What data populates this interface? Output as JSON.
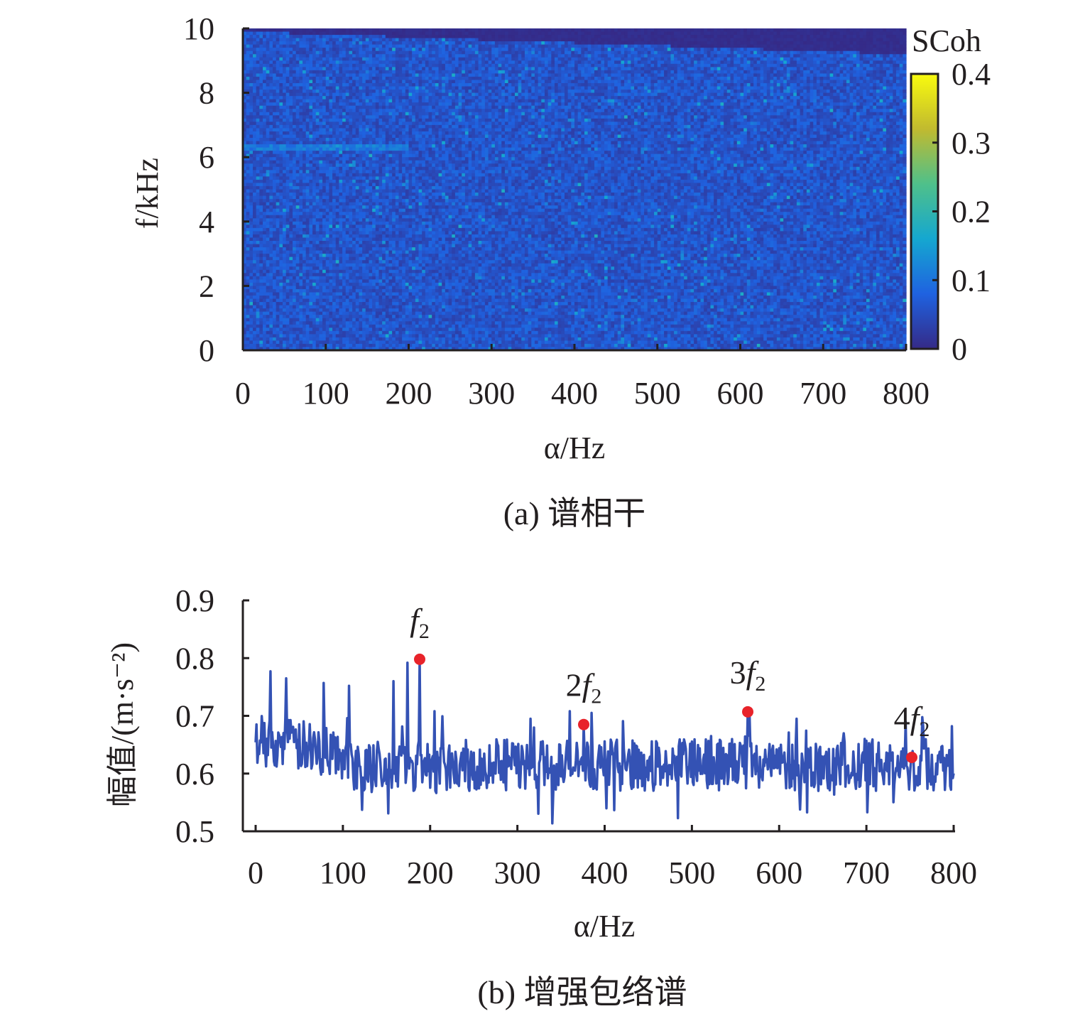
{
  "colors": {
    "line": "#3452b4",
    "peak_marker": "#e8232a",
    "axis": "#231f20",
    "colormap": [
      "#352a87",
      "#1f62e0",
      "#15a7d0",
      "#4fc08a",
      "#c1ba2f",
      "#f9fb0e"
    ]
  },
  "chart_data": [
    {
      "type": "heatmap",
      "caption": "(a) 谱相干",
      "xlabel": "α/Hz",
      "ylabel": "f/kHz",
      "xlim": [
        0,
        800
      ],
      "ylim": [
        0,
        10
      ],
      "xticks": [
        "0",
        "100",
        "200",
        "300",
        "400",
        "500",
        "600",
        "700",
        "800"
      ],
      "yticks": [
        "0",
        "2",
        "4",
        "6",
        "8",
        "10"
      ],
      "colorbar": {
        "label": "SCoh",
        "range": [
          0,
          0.4
        ],
        "ticks": [
          "0",
          "0.1",
          "0.2",
          "0.3",
          "0.4"
        ]
      },
      "background_level": 0.06,
      "noise_max": 0.15,
      "top_band": {
        "f_from_kHz": 9.2,
        "value": 0.0
      },
      "highlight_lines": [
        {
          "f_kHz": 6.3,
          "alpha_from": 0,
          "alpha_to": 200,
          "value": 0.12
        }
      ]
    },
    {
      "type": "line",
      "caption": "(b) 增强包络谱",
      "xlabel": "α/Hz",
      "ylabel": "幅值/(m·s⁻²)",
      "xlim": [
        0,
        800
      ],
      "ylim": [
        0.5,
        0.9
      ],
      "xticks": [
        "0",
        "100",
        "200",
        "300",
        "400",
        "500",
        "600",
        "700",
        "800"
      ],
      "yticks": [
        "0.5",
        "0.6",
        "0.7",
        "0.8",
        "0.9"
      ],
      "baseline": 0.615,
      "noise_amplitude": 0.045,
      "start_region": {
        "alpha_to": 110,
        "level": 0.66
      },
      "prominent_spikes": [
        {
          "x": 17,
          "y": 0.777
        },
        {
          "x": 35,
          "y": 0.765
        },
        {
          "x": 78,
          "y": 0.757
        },
        {
          "x": 107,
          "y": 0.752
        },
        {
          "x": 158,
          "y": 0.76
        },
        {
          "x": 174,
          "y": 0.792
        },
        {
          "x": 188,
          "y": 0.793
        },
        {
          "x": 205,
          "y": 0.708
        },
        {
          "x": 315,
          "y": 0.695
        },
        {
          "x": 360,
          "y": 0.708
        },
        {
          "x": 385,
          "y": 0.705
        },
        {
          "x": 566,
          "y": 0.705
        },
        {
          "x": 620,
          "y": 0.695
        },
        {
          "x": 745,
          "y": 0.69
        },
        {
          "x": 798,
          "y": 0.682
        }
      ],
      "peaks": [
        {
          "label": "f",
          "sub": "2",
          "prefix": "",
          "x": 188,
          "y": 0.798
        },
        {
          "label": "f",
          "sub": "2",
          "prefix": "2",
          "x": 376,
          "y": 0.685
        },
        {
          "label": "f",
          "sub": "2",
          "prefix": "3",
          "x": 564,
          "y": 0.707
        },
        {
          "label": "f",
          "sub": "2",
          "prefix": "4",
          "x": 752,
          "y": 0.628
        }
      ]
    }
  ]
}
